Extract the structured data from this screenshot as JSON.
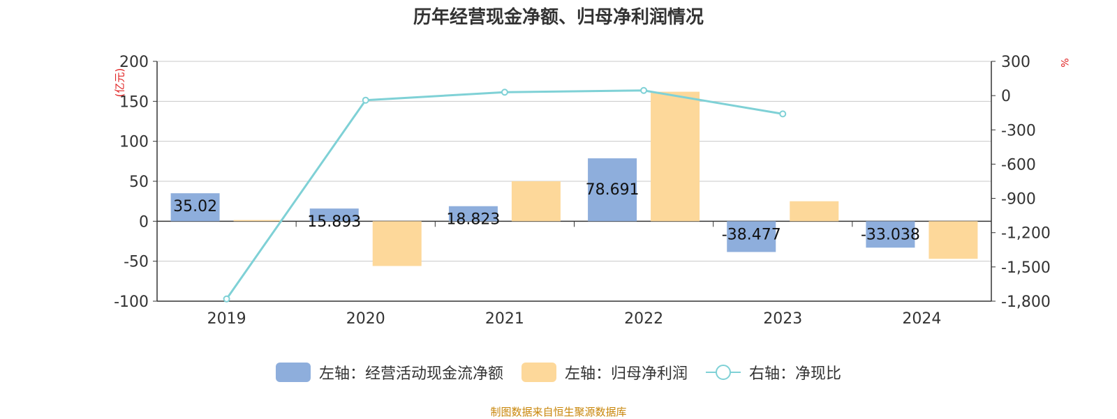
{
  "title": "历年经营现金净额、归母净利润情况",
  "footer": "制图数据来自恒生聚源数据库",
  "chart_data": {
    "type": "bar",
    "categories": [
      "2019",
      "2020",
      "2021",
      "2022",
      "2023",
      "2024"
    ],
    "left_axis": {
      "label": "(亿元)",
      "ylim": [
        -100,
        200
      ],
      "ticks": [
        200,
        150,
        100,
        50,
        0,
        -50,
        -100
      ]
    },
    "right_axis": {
      "label": "%",
      "ylim": [
        -1800,
        300
      ],
      "ticks": [
        "300",
        "0",
        "-300",
        "-600",
        "-900",
        "-1,200",
        "-1,500",
        "-1,800"
      ]
    },
    "series": [
      {
        "name": "左轴：经营活动现金流净额",
        "axis": "left",
        "kind": "bar",
        "color": "#8eaedc",
        "values": [
          35.02,
          15.893,
          18.823,
          78.691,
          -38.477,
          -33.038
        ],
        "labels": [
          "35.02",
          "15.893",
          "18.823",
          "78.691",
          "-38.477",
          "-33.038"
        ]
      },
      {
        "name": "左轴：归母净利润",
        "axis": "left",
        "kind": "bar",
        "color": "#fdd89a",
        "values": [
          1.5,
          -56,
          50,
          162,
          25,
          -47
        ]
      },
      {
        "name": "右轴：净现比",
        "axis": "right",
        "kind": "line",
        "color": "#7fd1d6",
        "values": [
          -1780,
          -40,
          30,
          45,
          -160,
          null
        ]
      }
    ],
    "grid": true,
    "legend_position": "bottom"
  }
}
